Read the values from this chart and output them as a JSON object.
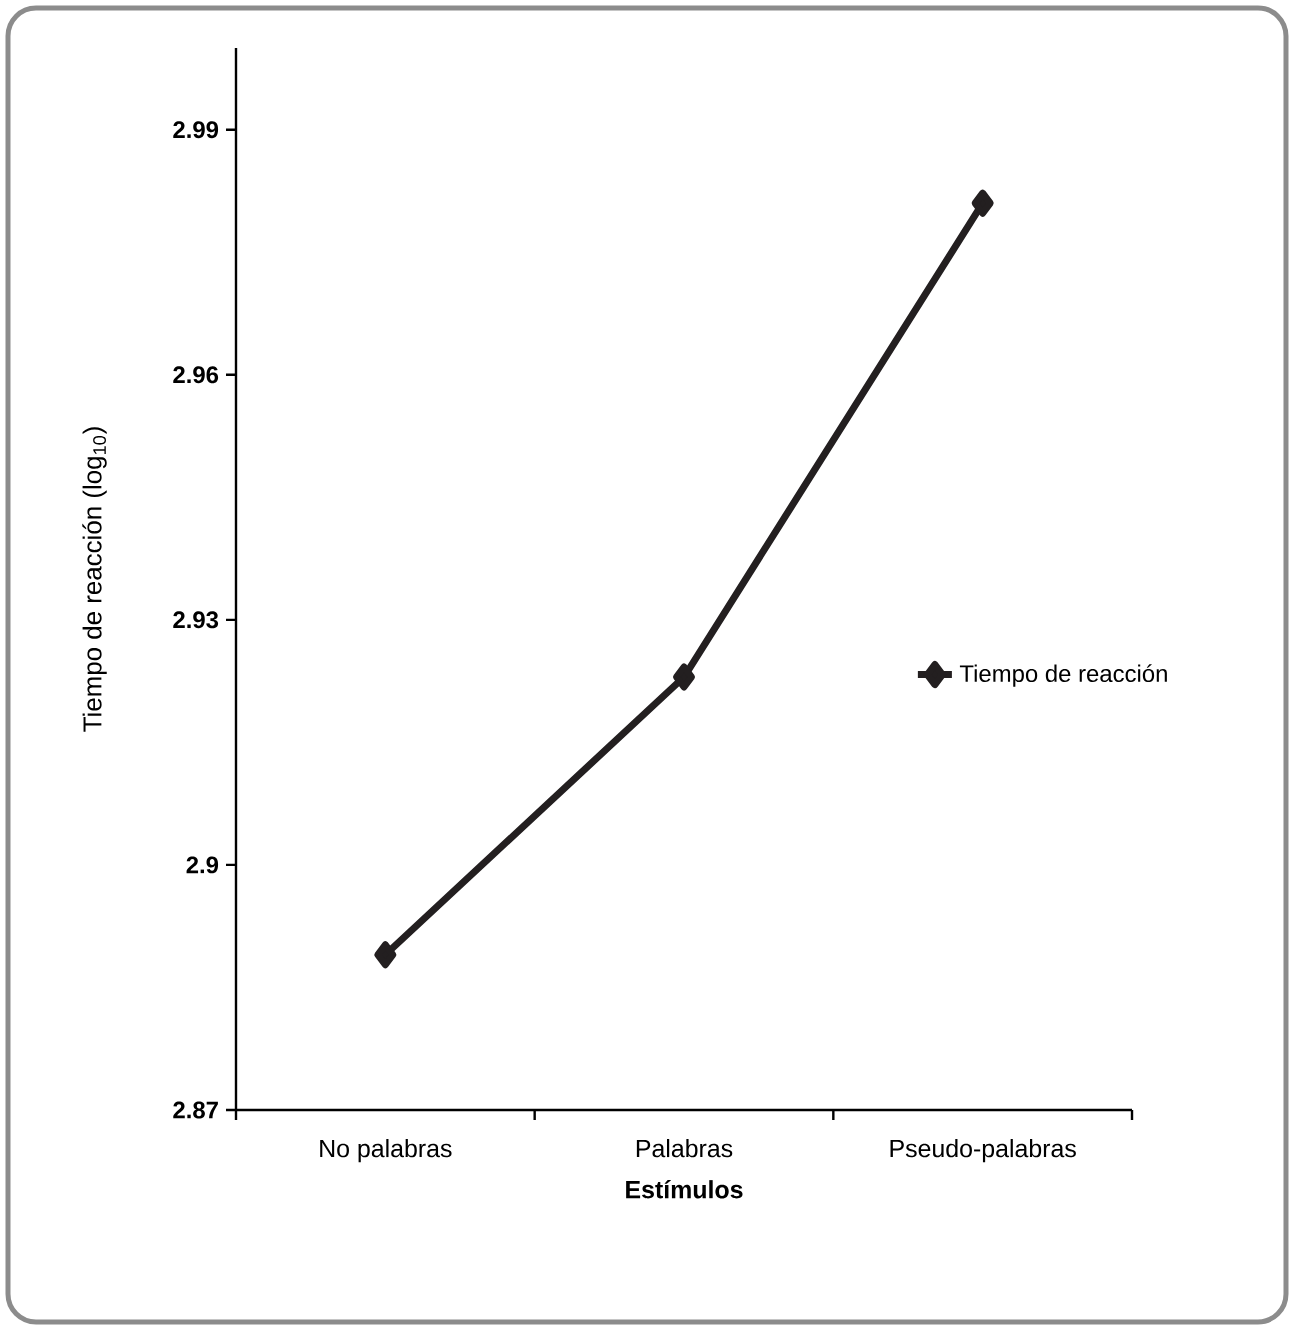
{
  "chart_data": {
    "type": "line",
    "xlabel": "Estímulos",
    "ylabel": "Tiempo de reacción (log$_{10}$)",
    "categories": [
      "No palabras",
      "Palabras",
      "Pseudo-palabras"
    ],
    "series": [
      {
        "name": "Tiempo de reacción",
        "color": "#231f20",
        "values": [
          2.889,
          2.923,
          2.981
        ]
      }
    ],
    "ylim": [
      2.87,
      3.0
    ],
    "yticks": [
      2.87,
      2.9,
      2.93,
      2.96,
      2.99
    ],
    "legend": "right",
    "marker": "diamond",
    "line_style": "solid",
    "grid": false
  }
}
